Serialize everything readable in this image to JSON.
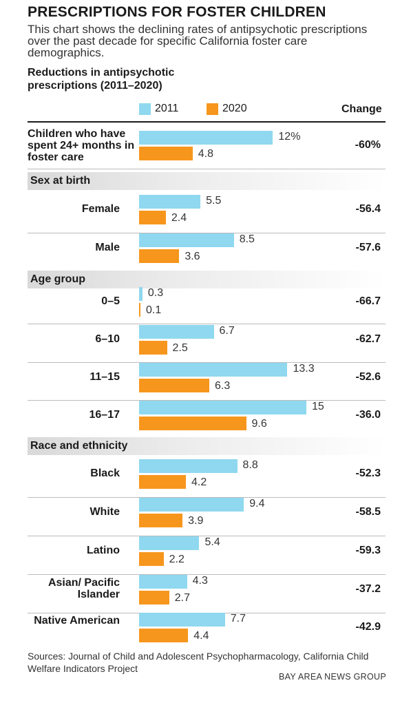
{
  "title": "PRESCRIPTIONS FOR FOSTER CHILDREN",
  "intro": "This chart shows the declining rates of antipsychotic prescriptions over the past decade for specific California foster care demographics.",
  "subtitle": "Reductions in antipsychotic prescriptions (2011–2020)",
  "change_header": "Change",
  "colors": {
    "2011": "#8fd8ef",
    "2020": "#f7961d"
  },
  "chart_data": {
    "type": "bar",
    "orientation": "horizontal",
    "series": [
      {
        "name": "2011",
        "color": "#8fd8ef"
      },
      {
        "name": "2020",
        "color": "#f7961d"
      }
    ],
    "groups": [
      {
        "header": "",
        "rows": [
          {
            "label": "Children who have spent 24+ months in foster care",
            "v2011": 12,
            "v2020": 4.8,
            "l2011": "12%",
            "l2020": "4.8",
            "change": "-60%"
          }
        ]
      },
      {
        "header": "Sex at birth",
        "rows": [
          {
            "label": "Female",
            "v2011": 5.5,
            "v2020": 2.4,
            "l2011": "5.5",
            "l2020": "2.4",
            "change": "-56.4"
          },
          {
            "label": "Male",
            "v2011": 8.5,
            "v2020": 3.6,
            "l2011": "8.5",
            "l2020": "3.6",
            "change": "-57.6"
          }
        ]
      },
      {
        "header": "Age group",
        "rows": [
          {
            "label": "0–5",
            "v2011": 0.3,
            "v2020": 0.1,
            "l2011": "0.3",
            "l2020": "0.1",
            "change": "-66.7"
          },
          {
            "label": "6–10",
            "v2011": 6.7,
            "v2020": 2.5,
            "l2011": "6.7",
            "l2020": "2.5",
            "change": "-62.7"
          },
          {
            "label": "11–15",
            "v2011": 13.3,
            "v2020": 6.3,
            "l2011": "13.3",
            "l2020": "6.3",
            "change": "-52.6"
          },
          {
            "label": "16–17",
            "v2011": 15,
            "v2020": 9.6,
            "l2011": "15",
            "l2020": "9.6",
            "change": "-36.0"
          }
        ]
      },
      {
        "header": "Race and ethnicity",
        "rows": [
          {
            "label": "Black",
            "v2011": 8.8,
            "v2020": 4.2,
            "l2011": "8.8",
            "l2020": "4.2",
            "change": "-52.3"
          },
          {
            "label": "White",
            "v2011": 9.4,
            "v2020": 3.9,
            "l2011": "9.4",
            "l2020": "3.9",
            "change": "-58.5"
          },
          {
            "label": "Latino",
            "v2011": 5.4,
            "v2020": 2.2,
            "l2011": "5.4",
            "l2020": "2.2",
            "change": "-59.3"
          },
          {
            "label": "Asian/ Pacific Islander",
            "v2011": 4.3,
            "v2020": 2.7,
            "l2011": "4.3",
            "l2020": "2.7",
            "change": "-37.2"
          },
          {
            "label": "Native American",
            "v2011": 7.7,
            "v2020": 4.4,
            "l2011": "7.7",
            "l2020": "4.4",
            "change": "-42.9"
          }
        ]
      }
    ]
  },
  "sources": "Sources: Journal of Child and Adolescent Psychopharmacology, California Child Welfare Indicators Project",
  "credit": "BAY AREA NEWS GROUP"
}
